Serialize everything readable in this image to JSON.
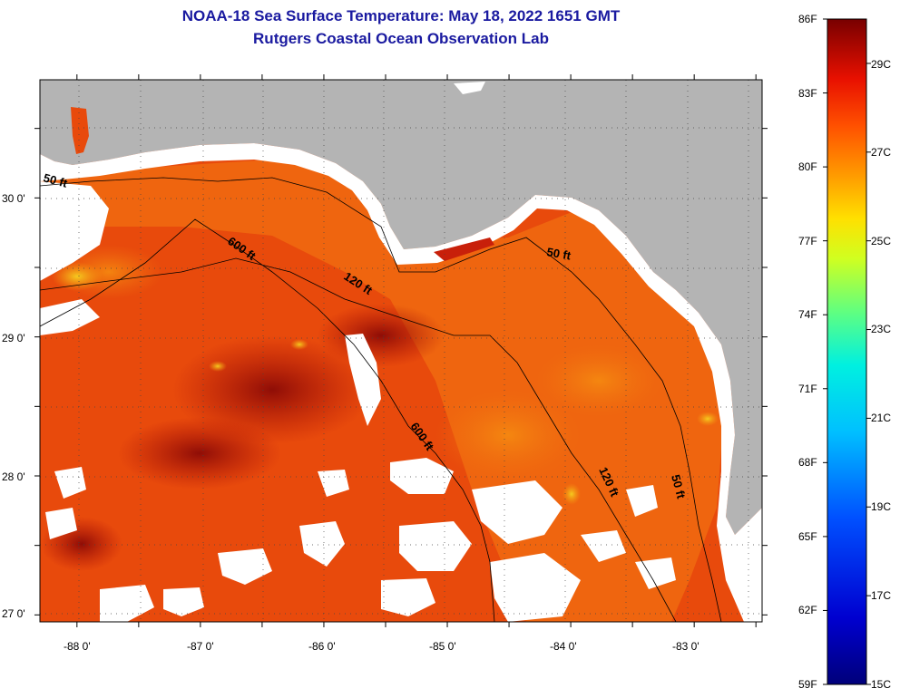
{
  "title": "NOAA-18 Sea Surface Temperature:  May 18, 2022 1651 GMT",
  "subtitle": "Rutgers Coastal Ocean Observation Lab",
  "map": {
    "lon_min": -88.3,
    "lon_max": -82.45,
    "lat_min": 26.95,
    "lat_max": 30.85,
    "lon_ticks": [
      {
        "value": -88,
        "label": "-88 0'"
      },
      {
        "value": -87,
        "label": "-87 0'"
      },
      {
        "value": -86,
        "label": "-86 0'"
      },
      {
        "value": -85,
        "label": "-85 0'"
      },
      {
        "value": -84,
        "label": "-84 0'"
      },
      {
        "value": -83,
        "label": "-83 0'"
      }
    ],
    "lat_ticks": [
      {
        "value": 30,
        "label": "30 0'"
      },
      {
        "value": 29,
        "label": "29 0'"
      },
      {
        "value": 28,
        "label": "28 0'"
      },
      {
        "value": 27,
        "label": "27 0'"
      }
    ],
    "contours": [
      {
        "label": "50 ft",
        "count": 3
      },
      {
        "label": "120 ft",
        "count": 2
      },
      {
        "label": "600 ft",
        "count": 2
      }
    ],
    "land_color": "#b4b4b4",
    "cloud_color": "#ffffff",
    "dominant_sst_color": "#e84a0c"
  },
  "colorbar": {
    "min_f": 59,
    "max_f": 86,
    "labels_f": [
      "86F",
      "83F",
      "80F",
      "77F",
      "74F",
      "71F",
      "68F",
      "65F",
      "62F",
      "59F"
    ],
    "labels_c": [
      "29C",
      "27C",
      "25C",
      "23C",
      "21C",
      "19C",
      "17C",
      "15C"
    ],
    "values_c": [
      29,
      27,
      25,
      23,
      21,
      19,
      17,
      15
    ]
  }
}
